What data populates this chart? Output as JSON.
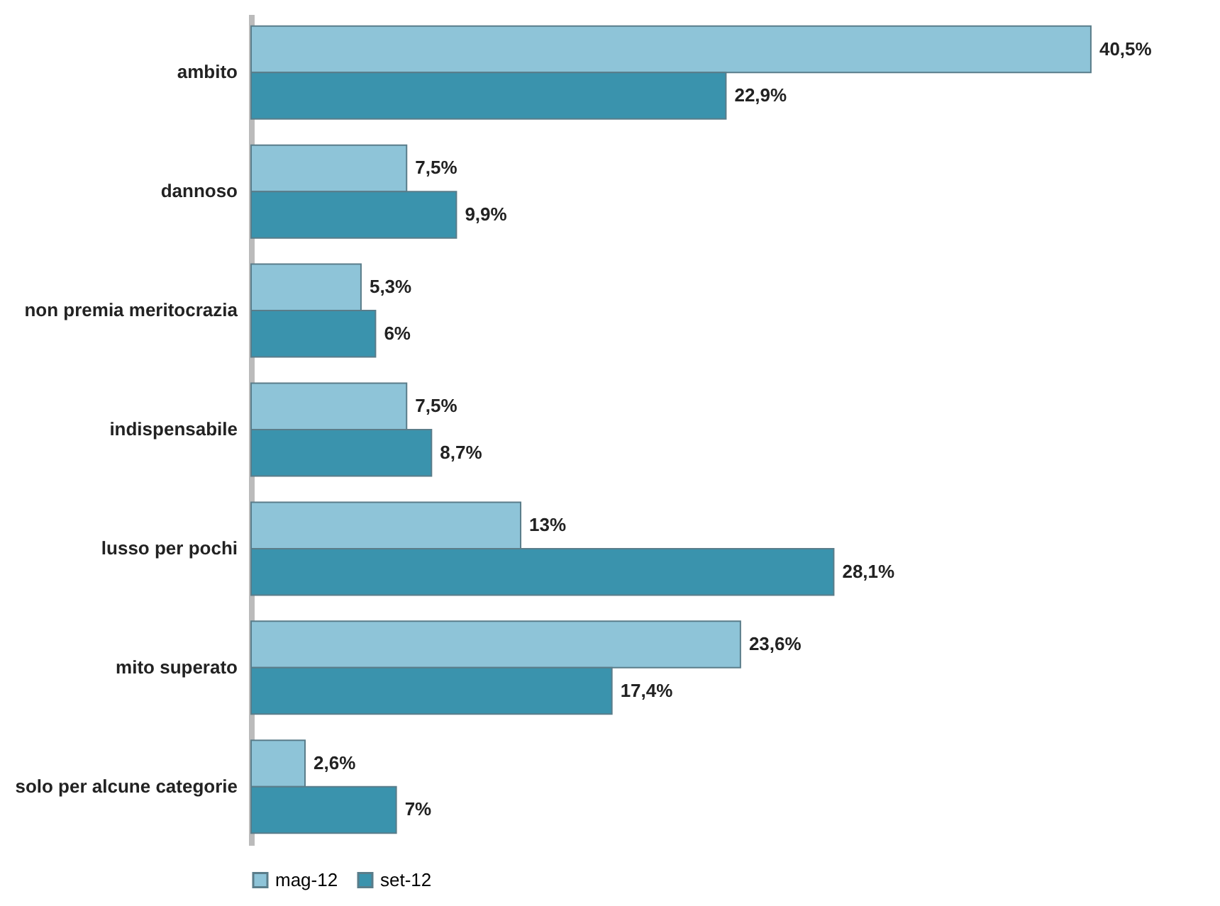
{
  "chart_data": {
    "type": "bar",
    "orientation": "horizontal",
    "categories": [
      "ambito",
      "dannoso",
      "non premia meritocrazia",
      "indispensabile",
      "lusso per pochi",
      "mito superato",
      "solo per alcune categorie"
    ],
    "series": [
      {
        "name": "mag-12",
        "color": "#8ec4d8",
        "values": [
          40.5,
          7.5,
          5.3,
          7.5,
          13,
          23.6,
          2.6
        ],
        "value_labels": [
          "40,5%",
          "7,5%",
          "5,3%",
          "7,5%",
          "13%",
          "23,6%",
          "2,6%"
        ]
      },
      {
        "name": "set-12",
        "color": "#3a93ad",
        "values": [
          22.9,
          9.9,
          6,
          8.7,
          28.1,
          17.4,
          7
        ],
        "value_labels": [
          "22,9%",
          "9,9%",
          "6%",
          "8,7%",
          "28,1%",
          "17,4%",
          "7%"
        ]
      }
    ],
    "legend": "bottom"
  }
}
